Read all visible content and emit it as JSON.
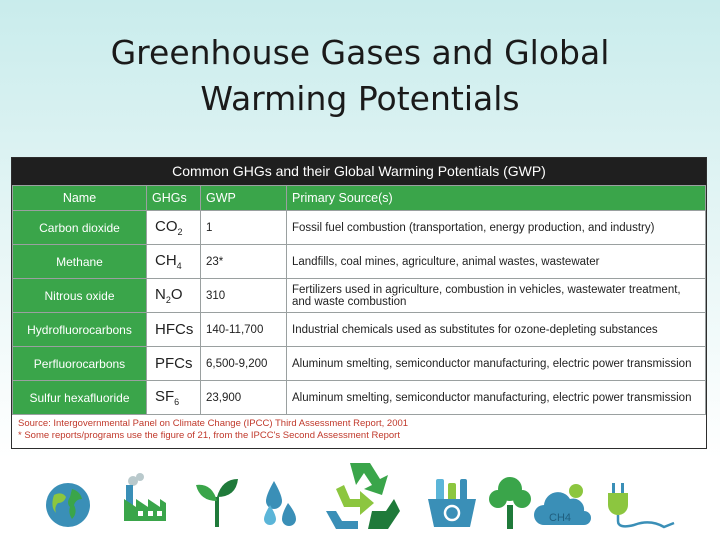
{
  "slide": {
    "title_line1": "Greenhouse Gases and Global",
    "title_line2": "Warming Potentials"
  },
  "table": {
    "heading": "Common GHGs and their Global Warming Potentials (GWP)",
    "columns": [
      "Name",
      "GHGs",
      "GWP",
      "Primary Source(s)"
    ],
    "rows": [
      {
        "name": "Carbon dioxide",
        "ghg_base": "CO",
        "ghg_sub": "2",
        "gwp": "1",
        "source": "Fossil fuel combustion (transportation, energy production, and industry)"
      },
      {
        "name": "Methane",
        "ghg_base": "CH",
        "ghg_sub": "4",
        "gwp": "23*",
        "source": "Landfills, coal mines, agriculture, animal wastes, wastewater"
      },
      {
        "name": "Nitrous oxide",
        "ghg_base": "N",
        "ghg_sub": "2",
        "ghg_after": "O",
        "gwp": "310",
        "source": "Fertilizers used in agriculture, combustion in vehicles, wastewater treatment, and waste combustion"
      },
      {
        "name": "Hydrofluorocarbons",
        "ghg_base": "HFCs",
        "gwp": "140-11,700",
        "source": "Industrial chemicals used as substitutes for ozone-depleting substances"
      },
      {
        "name": "Perfluorocarbons",
        "ghg_base": "PFCs",
        "gwp": "6,500-9,200",
        "source": "Aluminum smelting, semiconductor manufacturing, electric power transmission"
      },
      {
        "name": "Sulfur hexafluoride",
        "ghg_base": "SF",
        "ghg_sub": "6",
        "gwp": "23,900",
        "source": "Aluminum smelting, semiconductor manufacturing, electric power transmission"
      }
    ],
    "source_note": "Source: Intergovernmental Panel on Climate Change (IPCC) Third Assessment Report, 2001",
    "footnote": "* Some reports/programs use the figure of 21, from the IPCC's Second Assessment Report"
  },
  "icons": {
    "cloud_label": "CH4",
    "items": [
      "globe-icon",
      "factory-icon",
      "sprout-icon",
      "water-drops-icon",
      "recycle-icon",
      "recycling-bin-icon",
      "tree-icon",
      "cloud-icon",
      "plug-icon"
    ],
    "colors": {
      "green": "#3aa54a",
      "teal": "#3a8fb7",
      "light_green": "#8cc63f",
      "dark_green": "#1f7a3a"
    }
  }
}
